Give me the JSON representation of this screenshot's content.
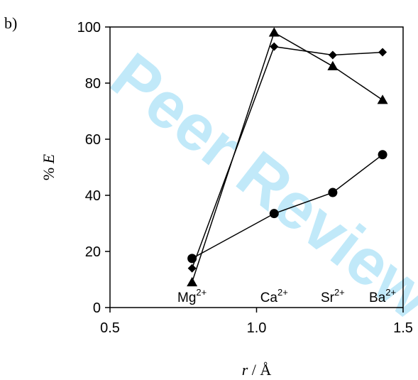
{
  "panel_label": "b)",
  "watermark": "Peer Review",
  "chart_data": {
    "type": "line",
    "xlabel_var": "r",
    "xlabel_unit": " / Å",
    "ylabel_prefix": "% ",
    "ylabel_var": "E",
    "xlim": [
      0.5,
      1.5
    ],
    "ylim": [
      0,
      100
    ],
    "x_ticks": [
      "0.5",
      "1.0",
      "1.5"
    ],
    "y_ticks": [
      "0",
      "20",
      "40",
      "60",
      "80",
      "100"
    ],
    "ions": [
      {
        "label": "Mg",
        "charge": "2+",
        "x": 0.78
      },
      {
        "label": "Ca",
        "charge": "2+",
        "x": 1.06
      },
      {
        "label": "Sr",
        "charge": "2+",
        "x": 1.26
      },
      {
        "label": "Ba",
        "charge": "2+",
        "x": 1.43
      }
    ],
    "series": [
      {
        "marker": "circle",
        "x": [
          0.78,
          1.06,
          1.26,
          1.43
        ],
        "values": [
          17.5,
          33.5,
          41,
          54.5
        ]
      },
      {
        "marker": "diamond",
        "x": [
          0.78,
          1.06,
          1.26,
          1.43
        ],
        "values": [
          14,
          93,
          90,
          91
        ]
      },
      {
        "marker": "triangle",
        "x": [
          0.78,
          1.06,
          1.26,
          1.43
        ],
        "values": [
          9,
          98,
          86,
          74
        ]
      }
    ]
  }
}
